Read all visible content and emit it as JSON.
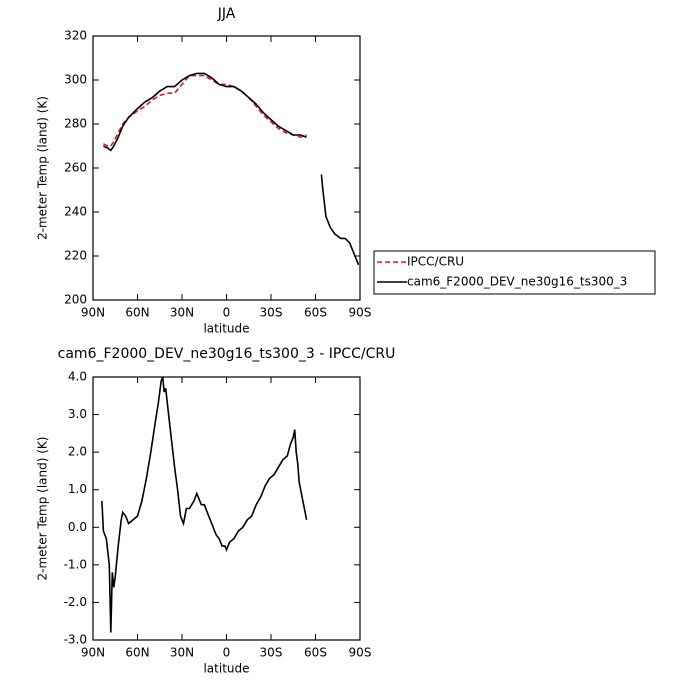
{
  "chart_data": [
    {
      "type": "line",
      "title": "JJA",
      "xlabel": "latitude",
      "ylabel": "2-meter Temp (land) (K)",
      "xlim": [
        90,
        -90
      ],
      "ylim": [
        200,
        320
      ],
      "xticks": [
        {
          "value": 90,
          "label": "90N"
        },
        {
          "value": 60,
          "label": "60N"
        },
        {
          "value": 30,
          "label": "30N"
        },
        0,
        {
          "value": -30,
          "label": "30S"
        },
        {
          "value": -60,
          "label": "60S"
        },
        {
          "value": -90,
          "label": "90S"
        }
      ],
      "yticks": [
        200,
        220,
        240,
        260,
        280,
        300,
        320
      ],
      "legend": "right",
      "x": [
        83,
        80,
        78,
        76,
        73,
        70,
        66,
        60,
        55,
        50,
        45,
        40,
        35,
        30,
        25,
        20,
        15,
        10,
        5,
        0,
        -5,
        -10,
        -15,
        -20,
        -25,
        -30,
        -35,
        -40,
        -45,
        -50,
        -54,
        -59,
        -64,
        -65,
        -67,
        -70,
        -73,
        -77,
        -80,
        -83,
        -86,
        -89
      ],
      "series": [
        {
          "name": "IPCC/CRU",
          "color": "#e8131b",
          "dashed": true,
          "values": [
            271,
            270,
            270,
            272,
            276,
            280,
            283,
            286,
            288,
            291,
            293,
            294,
            294,
            298,
            302,
            302,
            302,
            300,
            298,
            298,
            297,
            295,
            292,
            288,
            284,
            281,
            278,
            276,
            275,
            274,
            275,
            null,
            null,
            null,
            null,
            null,
            null,
            null,
            null,
            null,
            null,
            null
          ]
        },
        {
          "name": "cam6_F2000_DEV_ne30g16_ts300_3",
          "color": "#000000",
          "dashed": false,
          "values": [
            270,
            269,
            268,
            270,
            274,
            279,
            283,
            287,
            290,
            292,
            295,
            297,
            297,
            300,
            302,
            303,
            303,
            301,
            298,
            297,
            297,
            295,
            292,
            289,
            285,
            282,
            279,
            277,
            275,
            275,
            274,
            null,
            257,
            250,
            238,
            233,
            230,
            228,
            228,
            226,
            221,
            216
          ]
        }
      ]
    },
    {
      "type": "line",
      "title": "cam6_F2000_DEV_ne30g16_ts300_3 - IPCC/CRU",
      "xlabel": "latitude",
      "ylabel": "2-meter Temp (land) (K)",
      "xlim": [
        90,
        -90
      ],
      "ylim": [
        -3,
        4
      ],
      "xticks": [
        {
          "value": 90,
          "label": "90N"
        },
        {
          "value": 60,
          "label": "60N"
        },
        {
          "value": 30,
          "label": "30N"
        },
        0,
        {
          "value": -30,
          "label": "30S"
        },
        {
          "value": -60,
          "label": "60S"
        },
        {
          "value": -90,
          "label": "90S"
        }
      ],
      "yticks": [
        {
          "value": -3,
          "label": "-3.0"
        },
        {
          "value": -2,
          "label": "-2.0"
        },
        {
          "value": -1,
          "label": "-1.0"
        },
        {
          "value": 0,
          "label": "0.0"
        },
        {
          "value": 1,
          "label": "1.0"
        },
        {
          "value": 2,
          "label": "2.0"
        },
        {
          "value": 3,
          "label": "3.0"
        },
        {
          "value": 4,
          "label": "4.0"
        }
      ],
      "x": [
        84,
        83,
        81,
        79,
        78,
        77,
        76,
        75,
        73,
        71,
        70,
        68,
        66,
        63,
        60,
        57,
        54,
        51,
        48,
        46,
        44,
        43,
        42,
        41,
        39,
        37,
        35,
        33,
        31,
        29,
        27,
        25,
        22,
        20,
        17,
        15,
        12,
        10,
        7,
        5,
        3,
        1,
        0,
        -2,
        -5,
        -8,
        -11,
        -14,
        -17,
        -20,
        -23,
        -26,
        -29,
        -32,
        -35,
        -38,
        -41,
        -43,
        -45,
        -46,
        -47,
        -48,
        -49,
        -51,
        -52,
        -54
      ],
      "series": [
        {
          "color": "#000000",
          "dashed": false,
          "values": [
            0.7,
            -0.1,
            -0.3,
            -1.0,
            -2.8,
            -1.2,
            -1.6,
            -1.3,
            -0.5,
            0.2,
            0.4,
            0.3,
            0.1,
            0.2,
            0.3,
            0.7,
            1.3,
            2.0,
            2.8,
            3.3,
            3.9,
            4.0,
            3.6,
            3.7,
            3.0,
            2.3,
            1.6,
            1.0,
            0.3,
            0.1,
            0.5,
            0.5,
            0.7,
            0.9,
            0.6,
            0.6,
            0.3,
            0.1,
            -0.2,
            -0.3,
            -0.5,
            -0.5,
            -0.6,
            -0.4,
            -0.3,
            -0.1,
            0.0,
            0.2,
            0.3,
            0.6,
            0.8,
            1.1,
            1.3,
            1.4,
            1.6,
            1.8,
            1.9,
            2.2,
            2.4,
            2.6,
            2.0,
            1.7,
            1.2,
            0.8,
            0.6,
            0.2
          ]
        }
      ]
    }
  ]
}
